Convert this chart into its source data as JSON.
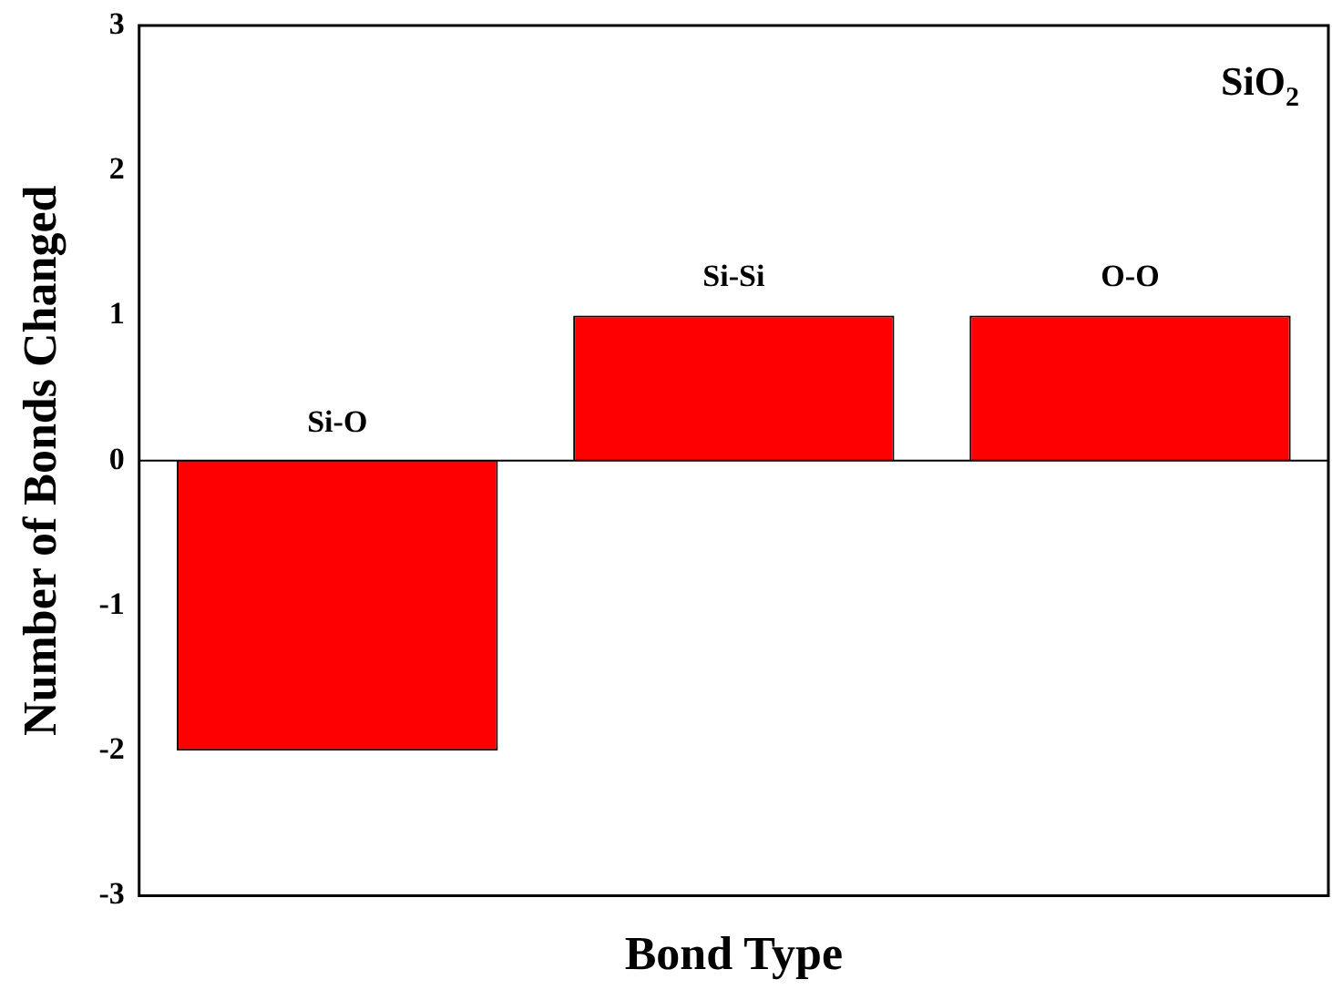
{
  "chart_data": {
    "type": "bar",
    "xlabel": "Bond Type",
    "ylabel": "Number of Bonds Changed",
    "categories": [
      "Si-O",
      "Si-Si",
      "O-O"
    ],
    "values": [
      -2,
      1,
      1
    ],
    "color": "#ff0000",
    "ylim": [
      -3,
      3
    ],
    "yticks": [
      -3,
      -2,
      -1,
      0,
      1,
      2,
      3
    ],
    "grid": false,
    "legend": false,
    "tick_labels": "y",
    "ref_lines": [
      {
        "axis": "y",
        "value": 0
      }
    ],
    "annotations": [
      "SiO$_{2}$"
    ]
  }
}
